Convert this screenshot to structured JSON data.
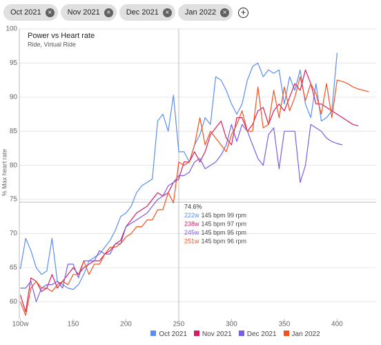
{
  "filters": [
    "Oct 2021",
    "Nov 2021",
    "Dec 2021",
    "Jan 2022"
  ],
  "chart_data": {
    "type": "line",
    "title": "Power vs Heart rate",
    "subtitle": "Ride, Virtual Ride",
    "y_label": "% Max heart rate",
    "x": [
      100,
      105,
      110,
      115,
      120,
      125,
      130,
      135,
      140,
      145,
      150,
      155,
      160,
      165,
      170,
      175,
      180,
      185,
      190,
      195,
      200,
      205,
      210,
      215,
      220,
      225,
      230,
      235,
      240,
      245,
      250,
      255,
      260,
      265,
      270,
      275,
      280,
      285,
      290,
      295,
      300,
      305,
      310,
      315,
      320,
      325,
      330,
      335,
      340,
      345,
      350,
      355,
      360,
      365,
      370,
      375,
      380,
      385,
      390,
      395,
      400,
      405,
      410,
      415,
      420,
      425,
      430,
      435
    ],
    "xlim": [
      99,
      437
    ],
    "xticks": [
      {
        "value": 100,
        "label": "100w"
      },
      150,
      200,
      250,
      300,
      350,
      400
    ],
    "ylim": [
      57.5,
      100
    ],
    "yticks": [
      60,
      65,
      70,
      75,
      80,
      85,
      90,
      95,
      100
    ],
    "grid": true,
    "series": [
      {
        "name": "Oct 2021",
        "color": "#5b8def",
        "values": [
          64.8,
          69.3,
          67.5,
          65,
          64,
          64.5,
          69.3,
          63,
          62.5,
          62,
          61.8,
          62.5,
          64,
          66,
          66.5,
          67,
          68,
          69,
          70.5,
          72.5,
          73,
          74,
          76,
          77,
          77.5,
          78,
          86.5,
          87.5,
          85,
          90.3,
          82,
          82,
          80.5,
          83,
          84.5,
          87,
          86,
          93,
          92.5,
          91,
          89,
          87.5,
          89,
          92.5,
          94.5,
          95,
          93,
          94,
          93.5,
          94,
          89,
          93,
          91,
          94,
          89,
          87,
          92,
          86.5,
          87,
          88,
          96.5,
          null,
          null,
          null,
          null,
          null,
          null,
          null
        ]
      },
      {
        "name": "Nov 2021",
        "color": "#d81b60",
        "values": [
          61,
          58.5,
          63.5,
          63,
          61.5,
          62,
          64,
          62,
          63,
          64,
          65,
          64,
          65,
          65.5,
          66,
          66,
          67,
          67.5,
          68.5,
          69,
          71,
          72,
          73,
          73.5,
          74,
          75,
          76,
          75.5,
          76,
          77.5,
          78,
          80.5,
          80.5,
          82,
          80.5,
          82,
          84.5,
          85.5,
          86.5,
          84,
          83,
          87,
          87,
          85,
          86,
          88,
          88.5,
          86,
          88,
          89,
          88,
          90,
          92,
          91,
          94,
          92,
          89,
          89,
          88.5,
          88,
          87.5,
          87,
          86.5,
          86,
          85.8,
          null,
          null,
          null
        ]
      },
      {
        "name": "Dec 2021",
        "color": "#7b5ce6",
        "values": [
          62,
          62,
          63,
          60,
          62,
          62.5,
          62.5,
          63,
          62,
          65.5,
          65.5,
          63.5,
          66,
          66,
          66,
          67.5,
          67,
          67,
          68.5,
          68.5,
          71,
          71.5,
          72,
          72.5,
          73,
          74,
          75,
          75.5,
          77,
          77.5,
          78.5,
          78.5,
          79,
          80.5,
          81,
          79.5,
          80,
          80.5,
          81.5,
          83,
          86,
          83.5,
          86,
          85,
          83,
          81,
          80,
          84.5,
          85.5,
          79.5,
          85,
          85,
          85,
          77.5,
          80,
          86,
          85.5,
          85,
          84,
          83.5,
          83.2,
          83,
          null,
          null,
          null,
          null,
          null,
          null
        ]
      },
      {
        "name": "Jan 2022",
        "color": "#f4511e",
        "values": [
          60,
          58,
          62,
          63,
          62,
          62,
          61.5,
          62.5,
          63,
          62.5,
          64,
          64,
          66,
          64,
          65.5,
          65.5,
          67,
          68,
          68,
          68.5,
          69.5,
          70,
          71,
          71,
          72,
          72,
          73.5,
          73.5,
          76,
          74.5,
          80.5,
          80,
          80.5,
          83,
          87,
          83,
          85,
          84,
          83,
          82,
          84.5,
          86,
          88,
          85,
          85,
          91.5,
          85.5,
          86,
          91,
          87,
          91.5,
          88,
          90,
          93,
          89.5,
          92,
          90.5,
          87.5,
          92,
          87,
          92.5,
          92.3,
          92,
          91.5,
          91.2,
          91,
          90.8,
          null
        ]
      }
    ],
    "crosshair": {
      "x": 250,
      "y": {
        "value": 74.6,
        "label": "74.6%"
      }
    },
    "tooltip": [
      {
        "power": "222w",
        "detail": "145 bpm 99 rpm"
      },
      {
        "power": "238w",
        "detail": "145 bpm 97 rpm"
      },
      {
        "power": "245w",
        "detail": "145 bpm 95 rpm"
      },
      {
        "power": "251w",
        "detail": "145 bpm 96 rpm"
      }
    ]
  }
}
